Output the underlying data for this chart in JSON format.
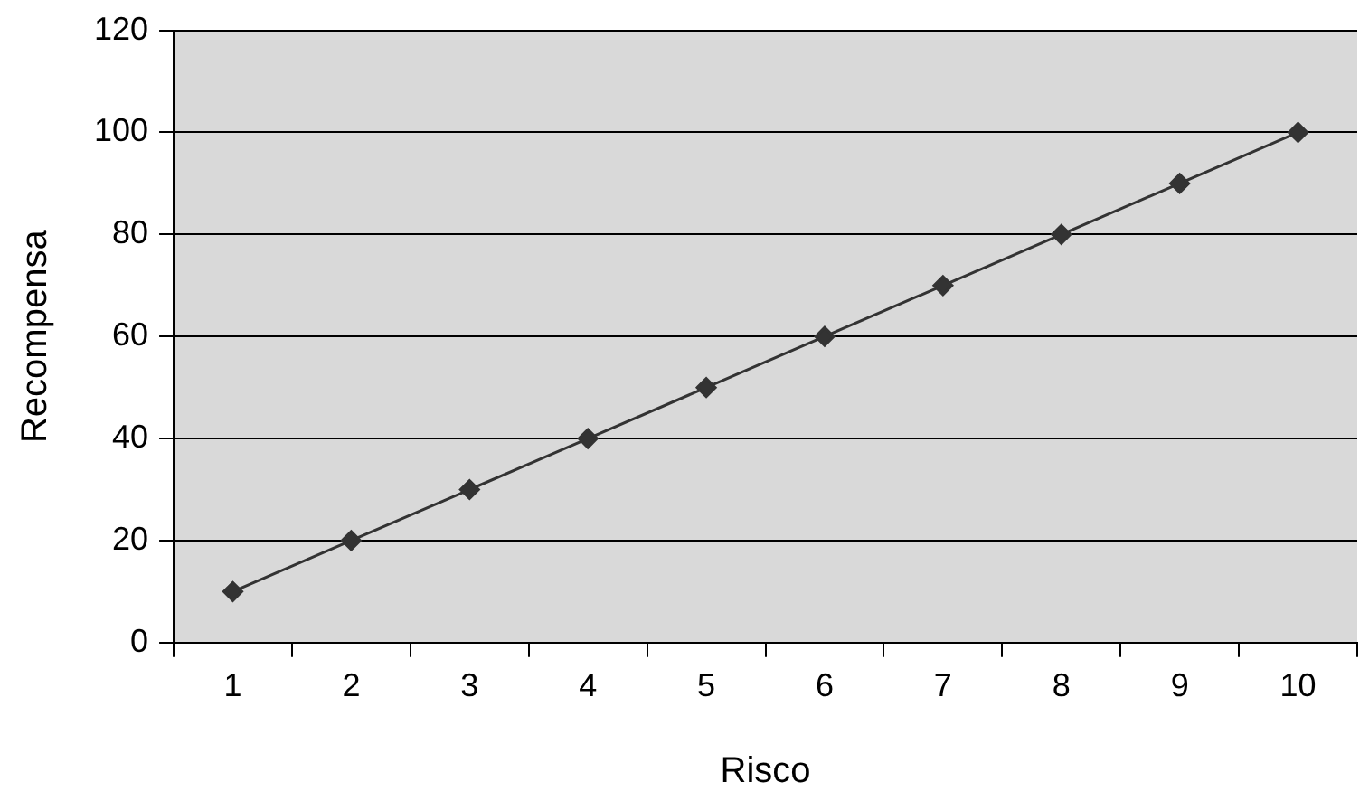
{
  "chart_data": {
    "type": "line",
    "xlabel": "Risco",
    "ylabel": "Recompensa",
    "categories": [
      "1",
      "2",
      "3",
      "4",
      "5",
      "6",
      "7",
      "8",
      "9",
      "10"
    ],
    "values": [
      10,
      20,
      30,
      40,
      50,
      60,
      70,
      80,
      90,
      100
    ],
    "color": "#333333",
    "ylim": [
      0,
      120
    ],
    "yticks": [
      0,
      20,
      40,
      60,
      80,
      100,
      120
    ],
    "grid": "y",
    "legend": false,
    "marker": "diamond",
    "line_style": "solid"
  }
}
